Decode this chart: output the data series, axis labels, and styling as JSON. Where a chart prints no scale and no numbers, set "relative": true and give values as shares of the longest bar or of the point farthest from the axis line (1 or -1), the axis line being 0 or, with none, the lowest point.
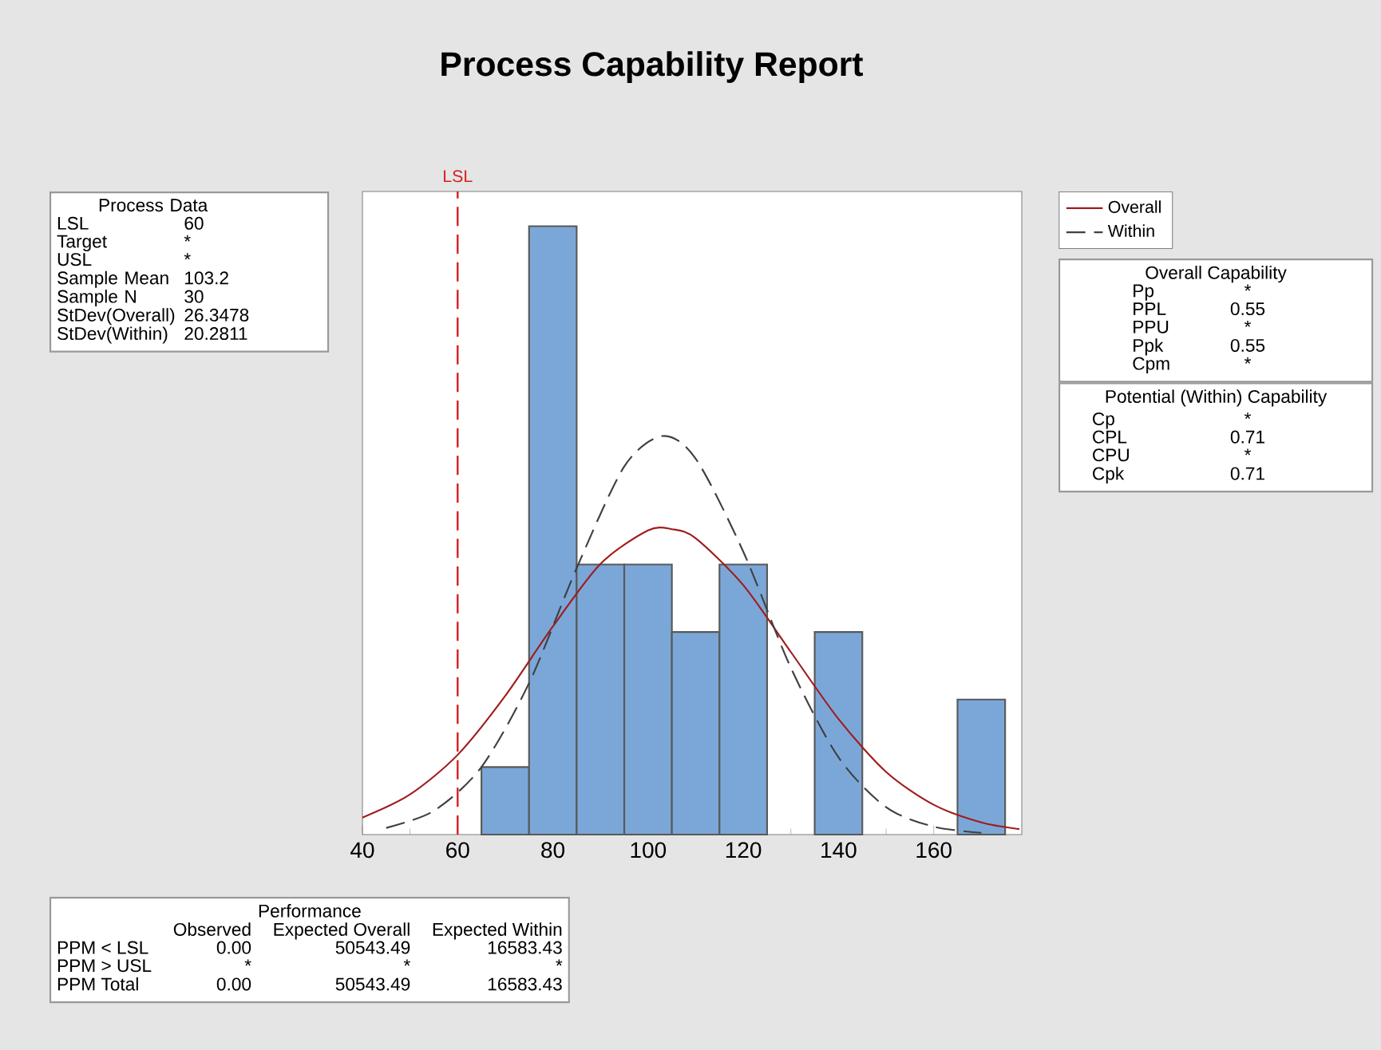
{
  "chart_data": {
    "type": "histogram",
    "title": "Process Capability Report",
    "relative": true,
    "bins": [
      65,
      75,
      85,
      95,
      105,
      115,
      125,
      135,
      145,
      155,
      165,
      175
    ],
    "values": [
      0.111,
      1,
      0.444,
      0.444,
      0.333,
      0.444,
      0,
      0.333,
      0,
      0,
      0.222
    ],
    "color": "#7ba7d8",
    "series": [
      {
        "type": "line",
        "name": "Overall",
        "color": "#a01c1c",
        "line_style": "solid",
        "x": [
          40,
          50,
          60,
          70,
          80,
          90,
          100,
          105,
          110,
          120,
          130,
          140,
          150,
          160,
          170,
          178
        ],
        "values": [
          0.028,
          0.066,
          0.131,
          0.228,
          0.342,
          0.445,
          0.5,
          0.502,
          0.487,
          0.41,
          0.3,
          0.19,
          0.103,
          0.049,
          0.02,
          0.009
        ]
      },
      {
        "type": "line",
        "name": "Within",
        "color": "#404040",
        "line_style": "dashed",
        "x": [
          45,
          55,
          65,
          75,
          85,
          95,
          103,
          110,
          120,
          130,
          140,
          150,
          160,
          170
        ],
        "values": [
          0.011,
          0.039,
          0.111,
          0.249,
          0.438,
          0.605,
          0.655,
          0.618,
          0.465,
          0.274,
          0.127,
          0.045,
          0.013,
          0.003
        ]
      }
    ],
    "marker": "none",
    "xlim": [
      40,
      178.5
    ],
    "xticks": [
      40,
      60,
      80,
      100,
      120,
      140,
      160
    ],
    "ref_lines": [
      {
        "axis": "x",
        "value": 60,
        "label": "LSL",
        "color": "#d42020",
        "line_style": "dashed"
      }
    ],
    "legend": "top right",
    "annotations": [
      "Process Data",
      "LSL",
      "60",
      "Target",
      "*",
      "USL",
      "*",
      "Sample Mean",
      "103.2",
      "Sample N",
      "30",
      "StDev(Overall)",
      "26.3478",
      "StDev(Within)",
      "20.2811",
      "Overall Capability",
      "Pp",
      "*",
      "PPL",
      "0.55",
      "PPU",
      "*",
      "Ppk",
      "0.55",
      "Cpm",
      "*",
      "Potential (Within) Capability",
      "Cp",
      "*",
      "CPL",
      "0.71",
      "CPU",
      "*",
      "Cpk",
      "0.71",
      "Performance",
      "Observed",
      "Expected Overall",
      "Expected Within",
      "PPM < LSL",
      "0.00",
      "50543.49",
      "16583.43",
      "PPM > USL",
      "*",
      "*",
      "*",
      "PPM Total",
      "0.00",
      "50543.49",
      "16583.43"
    ]
  }
}
